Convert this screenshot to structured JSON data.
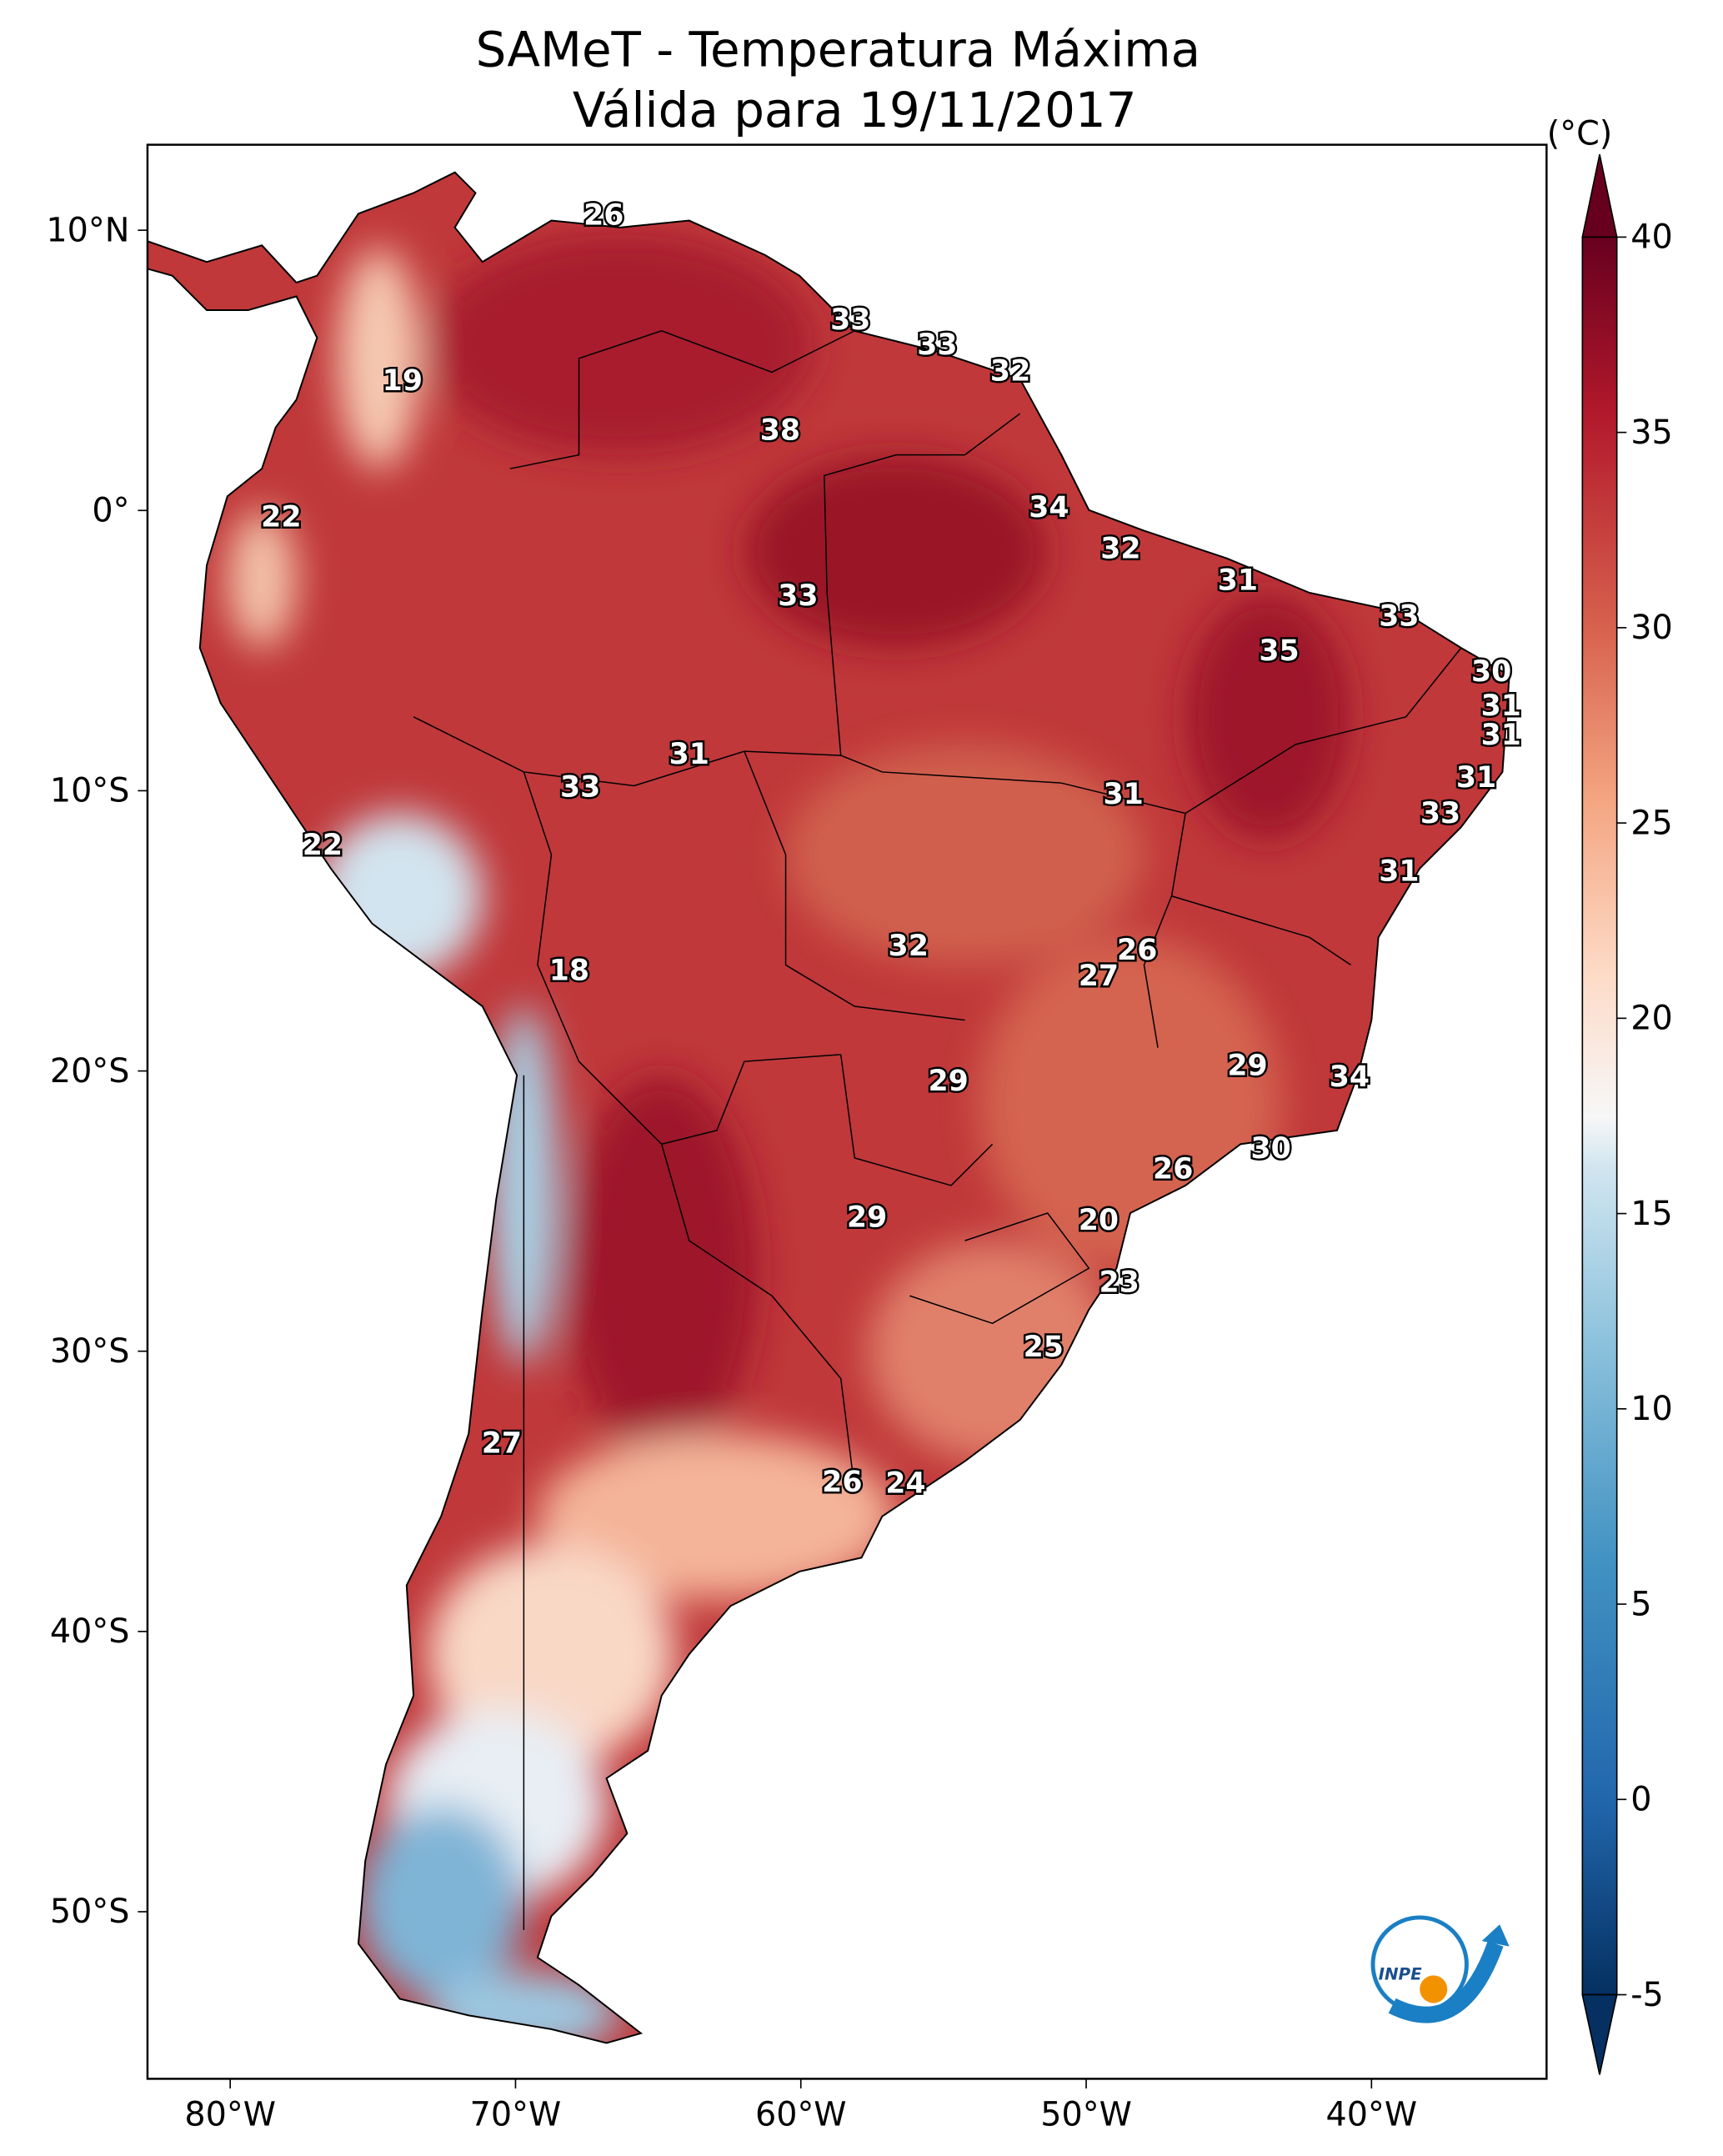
{
  "title": {
    "line1": "SAMeT - Temperatura Máxima",
    "line2": "Válida para 19/11/2017"
  },
  "map": {
    "lon_ticks": [
      "80°W",
      "70°W",
      "60°W",
      "50°W",
      "40°W"
    ],
    "lat_ticks": [
      "10°N",
      "0°",
      "10°S",
      "20°S",
      "30°S",
      "40°S",
      "50°S"
    ],
    "contour_labels": [
      "26",
      "33",
      "33",
      "32",
      "19",
      "38",
      "22",
      "34",
      "32",
      "33",
      "31",
      "33",
      "35",
      "30",
      "31",
      "31",
      "31",
      "33",
      "31",
      "31",
      "33",
      "22",
      "31",
      "32",
      "26",
      "27",
      "18",
      "29",
      "29",
      "34",
      "30",
      "26",
      "29",
      "20",
      "23",
      "25",
      "27",
      "26",
      "24"
    ]
  },
  "colorbar": {
    "unit": "(°C)",
    "ticks": [
      "40",
      "35",
      "30",
      "25",
      "20",
      "15",
      "10",
      "5",
      "0",
      "-5"
    ],
    "range": [
      -5,
      40
    ],
    "colors": {
      "min": "#053061",
      "mid": "#f7f7f7",
      "max": "#67001f"
    }
  },
  "logo": {
    "text": "INPE"
  }
}
